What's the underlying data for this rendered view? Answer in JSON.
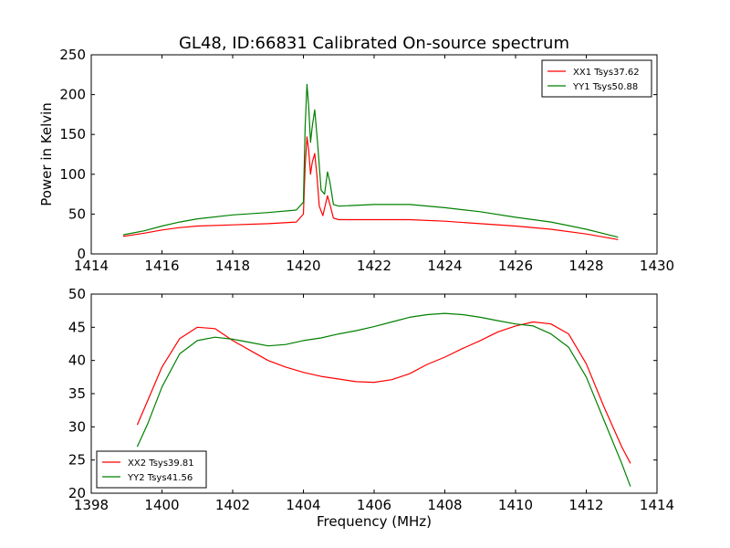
{
  "title": "GL48, ID:66831 Calibrated On-source spectrum",
  "colors": {
    "red": "#ff0000",
    "green": "#008000"
  },
  "chart_data": [
    {
      "type": "line",
      "ylabel": "Power in Kelvin",
      "xlabel": "",
      "xlim": [
        1414,
        1430
      ],
      "ylim": [
        0,
        250
      ],
      "xticks": [
        "1414",
        "1416",
        "1418",
        "1420",
        "1422",
        "1424",
        "1426",
        "1428",
        "1430"
      ],
      "yticks": [
        "0",
        "50",
        "100",
        "150",
        "200",
        "250"
      ],
      "legend_position": "top-right",
      "series": [
        {
          "name": "XX1 Tsys37.62",
          "color": "#ff0000",
          "points": [
            [
              1414.9,
              22
            ],
            [
              1415.5,
              26
            ],
            [
              1416,
              30
            ],
            [
              1416.5,
              33
            ],
            [
              1417,
              35
            ],
            [
              1418,
              36.5
            ],
            [
              1419,
              38
            ],
            [
              1419.8,
              40
            ],
            [
              1420.0,
              50
            ],
            [
              1420.05,
              110
            ],
            [
              1420.1,
              147
            ],
            [
              1420.15,
              130
            ],
            [
              1420.2,
              100
            ],
            [
              1420.25,
              115
            ],
            [
              1420.32,
              126
            ],
            [
              1420.38,
              100
            ],
            [
              1420.45,
              60
            ],
            [
              1420.55,
              48
            ],
            [
              1420.68,
              73
            ],
            [
              1420.75,
              62
            ],
            [
              1420.85,
              45
            ],
            [
              1421,
              43
            ],
            [
              1422,
              43
            ],
            [
              1423,
              43
            ],
            [
              1424,
              41
            ],
            [
              1425,
              38
            ],
            [
              1426,
              35
            ],
            [
              1427,
              31
            ],
            [
              1428,
              25
            ],
            [
              1428.9,
              18
            ]
          ]
        },
        {
          "name": "YY1 Tsys50.88",
          "color": "#008000",
          "points": [
            [
              1414.9,
              24
            ],
            [
              1415.5,
              29
            ],
            [
              1416,
              35
            ],
            [
              1416.5,
              40
            ],
            [
              1417,
              44
            ],
            [
              1418,
              49
            ],
            [
              1419,
              52
            ],
            [
              1419.8,
              55
            ],
            [
              1420.0,
              65
            ],
            [
              1420.05,
              160
            ],
            [
              1420.1,
              213
            ],
            [
              1420.15,
              185
            ],
            [
              1420.2,
              140
            ],
            [
              1420.25,
              160
            ],
            [
              1420.32,
              181
            ],
            [
              1420.4,
              140
            ],
            [
              1420.5,
              80
            ],
            [
              1420.6,
              75
            ],
            [
              1420.68,
              103
            ],
            [
              1420.75,
              90
            ],
            [
              1420.85,
              62
            ],
            [
              1421,
              60
            ],
            [
              1422,
              62
            ],
            [
              1423,
              62
            ],
            [
              1424,
              58
            ],
            [
              1425,
              53
            ],
            [
              1426,
              46
            ],
            [
              1427,
              40
            ],
            [
              1428,
              31
            ],
            [
              1428.9,
              21
            ]
          ]
        }
      ]
    },
    {
      "type": "line",
      "xlabel": "Frequency (MHz)",
      "ylabel": "",
      "xlim": [
        1398,
        1414
      ],
      "ylim": [
        20,
        50
      ],
      "xticks": [
        "1398",
        "1400",
        "1402",
        "1404",
        "1406",
        "1408",
        "1410",
        "1412",
        "1414"
      ],
      "yticks": [
        "20",
        "25",
        "30",
        "35",
        "40",
        "45",
        "50"
      ],
      "legend_position": "bottom-left",
      "series": [
        {
          "name": "XX2 Tsys39.81",
          "color": "#ff0000",
          "points": [
            [
              1399.3,
              30.3
            ],
            [
              1399.6,
              34
            ],
            [
              1400,
              39
            ],
            [
              1400.5,
              43.3
            ],
            [
              1401,
              45
            ],
            [
              1401.5,
              44.8
            ],
            [
              1402,
              43
            ],
            [
              1402.5,
              41.5
            ],
            [
              1403,
              40
            ],
            [
              1403.5,
              39
            ],
            [
              1404,
              38.2
            ],
            [
              1404.5,
              37.6
            ],
            [
              1405,
              37.2
            ],
            [
              1405.5,
              36.8
            ],
            [
              1406,
              36.7
            ],
            [
              1406.5,
              37.1
            ],
            [
              1407,
              38
            ],
            [
              1407.5,
              39.4
            ],
            [
              1408,
              40.5
            ],
            [
              1408.5,
              41.8
            ],
            [
              1409,
              43
            ],
            [
              1409.5,
              44.3
            ],
            [
              1410,
              45.2
            ],
            [
              1410.5,
              45.8
            ],
            [
              1411,
              45.5
            ],
            [
              1411.5,
              44
            ],
            [
              1412,
              39.5
            ],
            [
              1412.5,
              33
            ],
            [
              1413,
              27
            ],
            [
              1413.25,
              24.5
            ]
          ]
        },
        {
          "name": "YY2 Tsys41.56",
          "color": "#008000",
          "points": [
            [
              1399.3,
              27
            ],
            [
              1399.6,
              30.5
            ],
            [
              1400,
              36
            ],
            [
              1400.5,
              41
            ],
            [
              1401,
              43
            ],
            [
              1401.5,
              43.5
            ],
            [
              1402,
              43.2
            ],
            [
              1402.5,
              42.7
            ],
            [
              1403,
              42.2
            ],
            [
              1403.5,
              42.4
            ],
            [
              1404,
              43
            ],
            [
              1404.5,
              43.4
            ],
            [
              1405,
              44
            ],
            [
              1405.5,
              44.5
            ],
            [
              1406,
              45.1
            ],
            [
              1406.5,
              45.8
            ],
            [
              1407,
              46.5
            ],
            [
              1407.5,
              46.9
            ],
            [
              1408,
              47.1
            ],
            [
              1408.5,
              46.9
            ],
            [
              1409,
              46.5
            ],
            [
              1409.5,
              46
            ],
            [
              1410,
              45.5
            ],
            [
              1410.5,
              45.2
            ],
            [
              1411,
              44
            ],
            [
              1411.5,
              42
            ],
            [
              1412,
              37.5
            ],
            [
              1412.5,
              31
            ],
            [
              1413,
              24.5
            ],
            [
              1413.25,
              21
            ]
          ]
        }
      ]
    }
  ]
}
